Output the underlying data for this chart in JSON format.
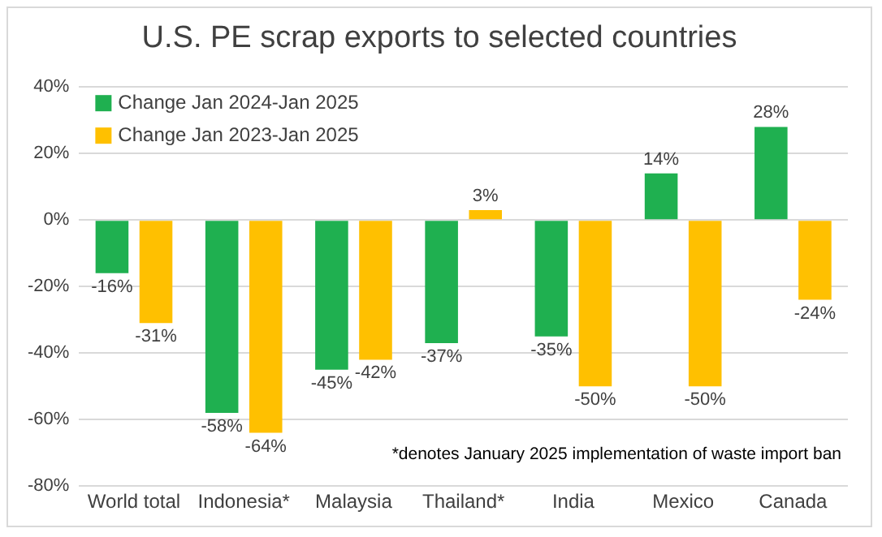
{
  "chart_data": {
    "type": "bar",
    "title": "U.S. PE scrap exports to selected countries",
    "categories": [
      "World total",
      "Indonesia*",
      "Malaysia",
      "Thailand*",
      "India",
      "Mexico",
      "Canada"
    ],
    "series": [
      {
        "name": "Change Jan 2024-Jan 2025",
        "color": "#1fb050",
        "values": [
          -16,
          -58,
          -45,
          -37,
          -35,
          14,
          28
        ],
        "value_labels": [
          "-16%",
          "-58%",
          "-45%",
          "-37%",
          "-35%",
          "14%",
          "28%"
        ]
      },
      {
        "name": "Change Jan 2023-Jan 2025",
        "color": "#ffc000",
        "values": [
          -31,
          -64,
          -42,
          3,
          -50,
          -50,
          -24
        ],
        "value_labels": [
          "-31%",
          "-64%",
          "-42%",
          "3%",
          "-50%",
          "-50%",
          "-24%"
        ]
      }
    ],
    "ylim": [
      -80,
      40
    ],
    "yticks": [
      {
        "value": -80,
        "label": "-80%"
      },
      {
        "value": -60,
        "label": "-60%"
      },
      {
        "value": -40,
        "label": "-40%"
      },
      {
        "value": -20,
        "label": "-20%"
      },
      {
        "value": 0,
        "label": "0%"
      },
      {
        "value": 20,
        "label": "20%"
      },
      {
        "value": 40,
        "label": "40%"
      }
    ],
    "grid": "y",
    "legend": "top left",
    "annotations": [
      "*denotes January 2025 implementation of waste import ban"
    ]
  }
}
